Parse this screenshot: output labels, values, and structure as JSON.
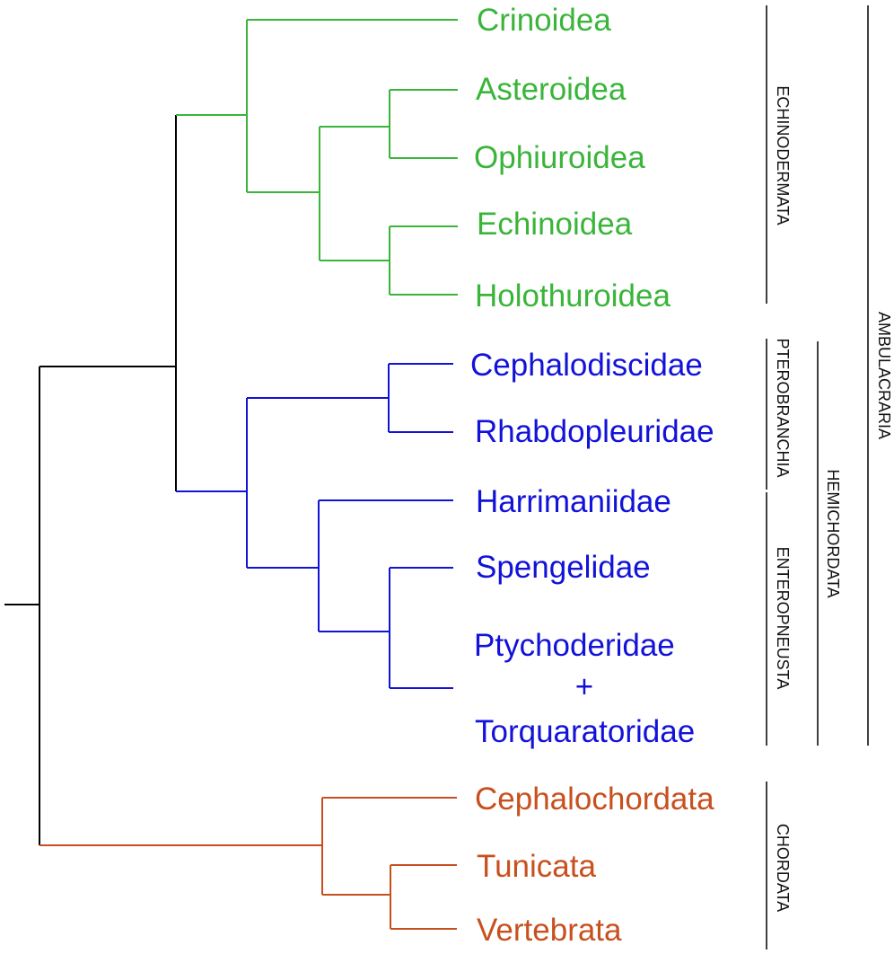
{
  "colors": {
    "echinodermata": "#3ab53a",
    "hemichordata": "#1212d8",
    "chordata": "#c8501e",
    "root": "#000000"
  },
  "taxa": {
    "crinoidea": "Crinoidea",
    "asteroidea": "Asteroidea",
    "ophiuroidea": "Ophiuroidea",
    "echinoidea": "Echinoidea",
    "holothuroidea": "Holothuroidea",
    "cephalodiscidae": "Cephalodiscidae",
    "rhabdopleuridae": "Rhabdopleuridae",
    "harrimaniidae": "Harrimaniidae",
    "spengelidae": "Spengelidae",
    "ptychoderidae": "Ptychoderidae",
    "plus": "+",
    "torquaratoridae": "Torquaratoridae",
    "cephalochordata": "Cephalochordata",
    "tunicata": "Tunicata",
    "vertebrata": "Vertebrata"
  },
  "clades": {
    "echinodermata": "ECHINODERMATA",
    "pterobranchia": "PTEROBRANCHIA",
    "enteropneusta": "ENTEROPNEUSTA",
    "hemichordata": "HEMICHORDATA",
    "ambulacraria": "AMBULACRARIA",
    "chordata": "CHORDATA"
  }
}
